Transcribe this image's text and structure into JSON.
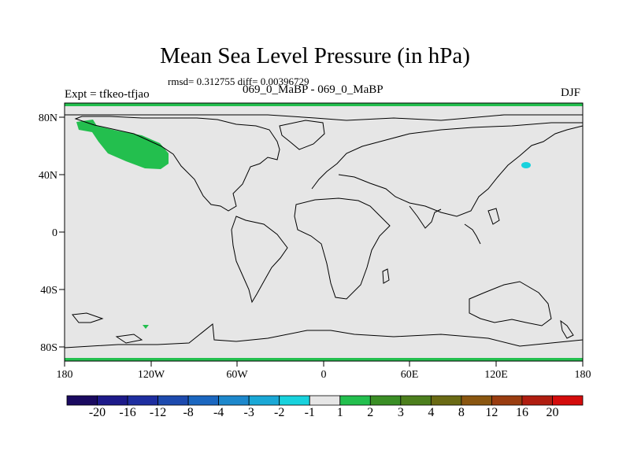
{
  "header": {
    "title": "Mean Sea Level Pressure (in hPa)",
    "stats": "rmsd= 0.312755 diff= 0.00396729",
    "experiment": "Expt = tfkeo-tfjao",
    "subtitle": "069_0_MaBP - 069_0_MaBP",
    "season": "DJF"
  },
  "axes": {
    "x_ticks": [
      "180",
      "120W",
      "60W",
      "0",
      "60E",
      "120E",
      "180"
    ],
    "y_ticks": [
      "80N",
      "40N",
      "0",
      "40S",
      "80S"
    ]
  },
  "colorbar": {
    "labels": [
      "-20",
      "-16",
      "-12",
      "-8",
      "-4",
      "-3",
      "-2",
      "-1",
      "1",
      "2",
      "3",
      "4",
      "8",
      "12",
      "16",
      "20"
    ],
    "colors": [
      "#1a0a60",
      "#1d1a8a",
      "#1e2ea0",
      "#1d4aae",
      "#1b67c0",
      "#1d88cc",
      "#1aa8d6",
      "#18d2dd",
      "#e6e6e6",
      "#23bf4e",
      "#3a8e25",
      "#4c7f1d",
      "#6a6a14",
      "#8a5610",
      "#9a3d10",
      "#b01d10",
      "#d40c0c"
    ]
  },
  "map": {
    "background": "#e6e6e6",
    "anomalies": [
      {
        "region": "North Pacific / Alaska",
        "color": "#23bf4e"
      },
      {
        "region": "Northwest Pacific near Japan",
        "color": "#18d2dd"
      },
      {
        "region": "South Pacific",
        "color": "#23bf4e"
      },
      {
        "region": "North pole band",
        "color": "#23bf4e"
      },
      {
        "region": "South pole band",
        "color": "#23bf4e"
      }
    ]
  }
}
